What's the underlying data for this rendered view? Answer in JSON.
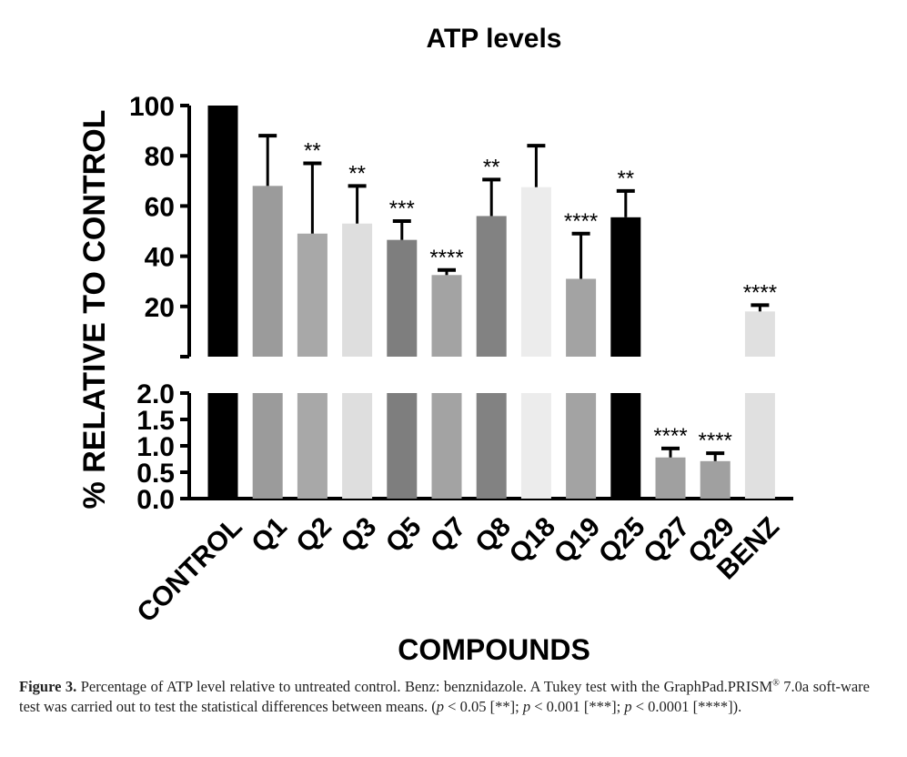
{
  "chart_data": {
    "type": "bar",
    "title": "ATP levels",
    "xlabel": "COMPOUNDS",
    "ylabel": "% RELATIVE TO CONTROL",
    "axis_break": true,
    "upper_segment": {
      "ylim": [
        0,
        100
      ],
      "yticks": [
        "20",
        "40",
        "60",
        "80",
        "100"
      ]
    },
    "lower_segment": {
      "ylim": [
        0,
        2
      ],
      "yticks": [
        "0.0",
        "0.5",
        "1.0",
        "1.5",
        "2.0"
      ]
    },
    "categories": [
      "CONTROL",
      "Q1",
      "Q2",
      "Q3",
      "Q5",
      "Q7",
      "Q8",
      "Q18",
      "Q19",
      "Q25",
      "Q27",
      "Q29",
      "BENZ"
    ],
    "values": [
      100,
      68,
      49,
      53,
      46.5,
      32.5,
      56,
      67.5,
      31,
      55.5,
      0.78,
      0.71,
      18
    ],
    "error_upper": [
      0,
      88,
      77,
      68,
      54,
      34.5,
      70.5,
      84,
      49,
      66,
      0.95,
      0.86,
      20.5
    ],
    "significance": [
      "",
      "",
      "**",
      "**",
      "***",
      "****",
      "**",
      "",
      "****",
      "**",
      "****",
      "****",
      "****"
    ],
    "bar_colors": [
      "#000000",
      "#9b9b9b",
      "#a8a8a8",
      "#dedede",
      "#7e7e7e",
      "#a3a3a3",
      "#828282",
      "#ececec",
      "#a3a3a3",
      "#000000",
      "#a0a0a0",
      "#a0a0a0",
      "#e0e0e0"
    ]
  },
  "caption": {
    "label": "Figure 3.",
    "text_1": "Percentage of ATP level relative to untreated control. Benz: benznidazole. A Tukey test with the GraphPad.PRISM",
    "sup": "®",
    "text_2": "7.0a soft-ware test was carried out to test the statistical differences between means.",
    "p1_value": "< 0.05 [**];",
    "p2_value": "< 0.001 [***];",
    "p3_value": "< 0.0001 [****]).",
    "p_symbol": "p",
    "open_paren": "("
  }
}
